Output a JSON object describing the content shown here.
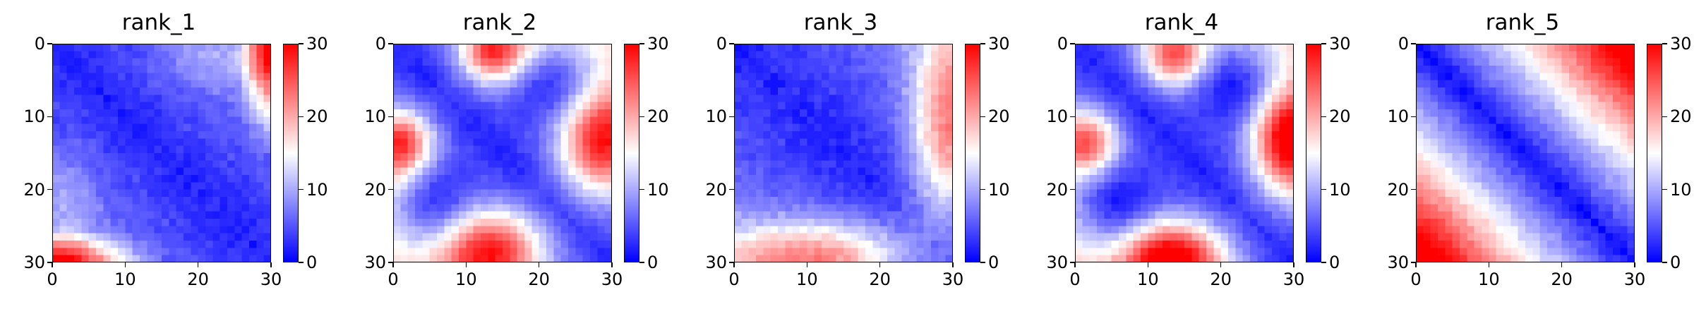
{
  "chart_data": [
    {
      "type": "heatmap",
      "title": "rank_1",
      "pattern": "rank_1",
      "grid_size": 30,
      "xlim": [
        0,
        30
      ],
      "ylim": [
        0,
        30
      ],
      "xticks": [
        "0",
        "10",
        "20",
        "30"
      ],
      "yticks": [
        "0",
        "10",
        "20",
        "30"
      ],
      "colorbar": {
        "min": 0,
        "max": 30,
        "ticks": [
          "0",
          "10",
          "20",
          "30"
        ]
      }
    },
    {
      "type": "heatmap",
      "title": "rank_2",
      "pattern": "rank_2",
      "grid_size": 30,
      "xlim": [
        0,
        30
      ],
      "ylim": [
        0,
        30
      ],
      "xticks": [
        "0",
        "10",
        "20",
        "30"
      ],
      "yticks": [
        "0",
        "10",
        "20",
        "30"
      ],
      "colorbar": {
        "min": 0,
        "max": 30,
        "ticks": [
          "0",
          "10",
          "20",
          "30"
        ]
      }
    },
    {
      "type": "heatmap",
      "title": "rank_3",
      "pattern": "rank_3",
      "grid_size": 30,
      "xlim": [
        0,
        30
      ],
      "ylim": [
        0,
        30
      ],
      "xticks": [
        "0",
        "10",
        "20",
        "30"
      ],
      "yticks": [
        "0",
        "10",
        "20",
        "30"
      ],
      "colorbar": {
        "min": 0,
        "max": 30,
        "ticks": [
          "0",
          "10",
          "20",
          "30"
        ]
      }
    },
    {
      "type": "heatmap",
      "title": "rank_4",
      "pattern": "rank_4",
      "grid_size": 30,
      "xlim": [
        0,
        30
      ],
      "ylim": [
        0,
        30
      ],
      "xticks": [
        "0",
        "10",
        "20",
        "30"
      ],
      "yticks": [
        "0",
        "10",
        "20",
        "30"
      ],
      "colorbar": {
        "min": 0,
        "max": 30,
        "ticks": [
          "0",
          "10",
          "20",
          "30"
        ]
      }
    },
    {
      "type": "heatmap",
      "title": "rank_5",
      "pattern": "rank_5",
      "grid_size": 30,
      "xlim": [
        0,
        30
      ],
      "ylim": [
        0,
        30
      ],
      "xticks": [
        "0",
        "10",
        "20",
        "30"
      ],
      "yticks": [
        "0",
        "10",
        "20",
        "30"
      ],
      "colorbar": {
        "min": 0,
        "max": 30,
        "ticks": [
          "0",
          "10",
          "20",
          "30"
        ]
      }
    }
  ],
  "colormap": {
    "name": "bwr",
    "low": "#0000ff",
    "mid": "#ffffff",
    "high": "#ff0000"
  }
}
